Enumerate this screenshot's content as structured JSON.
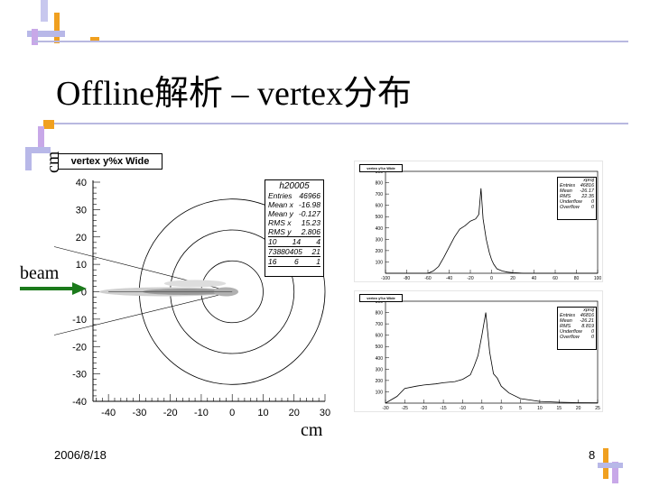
{
  "slide": {
    "title": "Offline解析 – vertex分布",
    "ylabel_unit": "cm",
    "xlabel_unit": "cm",
    "beam_label": "beam",
    "date": "2006/8/18",
    "page": "8"
  },
  "colors": {
    "beam_arrow": "#1b7a1b",
    "decor_purple": "#b8b8e8",
    "decor_orange": "#f0a020"
  },
  "chart_data": [
    {
      "type": "scatter",
      "title": "vertex y%x Wide",
      "ylim": [
        -40,
        40
      ],
      "xlim": [
        -45,
        30
      ],
      "xticks": [
        "-40",
        "-30",
        "-20",
        "-10",
        "0",
        "10",
        "20",
        "30"
      ],
      "yticks": [
        "40",
        "30",
        "20",
        "10",
        "0",
        "-10",
        "-20",
        "-30",
        "-40"
      ],
      "stats": {
        "name": "h20005",
        "rows": [
          {
            "k": "Entries",
            "v": "46966"
          },
          {
            "k": "Mean x",
            "v": "-16.98"
          },
          {
            "k": "Mean y",
            "v": "-0.127"
          },
          {
            "k": "RMS x",
            "v": "15.23"
          },
          {
            "k": "RMS y",
            "v": "2.806"
          }
        ],
        "grid": [
          [
            "10",
            "14",
            "4"
          ],
          [
            "73880405",
            "",
            "21"
          ],
          [
            "16",
            "6",
            "1"
          ]
        ]
      },
      "circles_radius": [
        10,
        20,
        30
      ]
    },
    {
      "type": "line",
      "title": "vertex y%x Wide",
      "stats": {
        "name": "xproj",
        "rows": [
          {
            "k": "Entries",
            "v": "46816"
          },
          {
            "k": "Mean",
            "v": "-26.17"
          },
          {
            "k": "RMS",
            "v": "22.35"
          },
          {
            "k": "Underflow",
            "v": "0"
          },
          {
            "k": "Overflow",
            "v": "0"
          }
        ]
      },
      "xlim": [
        -100,
        100
      ],
      "ylim": [
        0,
        900
      ],
      "xticks": [
        "-100",
        "-80",
        "-60",
        "-40",
        "-20",
        "0",
        "20",
        "40",
        "60",
        "80",
        "100"
      ],
      "yticks": [
        "900",
        "800",
        "700",
        "600",
        "500",
        "400",
        "300",
        "200",
        "100"
      ],
      "x": [
        -100,
        -95,
        -90,
        -85,
        -80,
        -75,
        -70,
        -65,
        -60,
        -55,
        -50,
        -45,
        -40,
        -35,
        -30,
        -25,
        -20,
        -15,
        -12,
        -10,
        -8,
        -5,
        -2,
        0,
        2,
        5,
        10,
        15,
        20,
        25,
        30,
        40,
        50,
        60,
        70,
        80,
        90,
        100
      ],
      "y": [
        0,
        0,
        0,
        0,
        0,
        0,
        0,
        0,
        0,
        20,
        60,
        140,
        230,
        320,
        390,
        420,
        460,
        480,
        520,
        750,
        480,
        300,
        180,
        120,
        80,
        40,
        20,
        10,
        5,
        2,
        0,
        0,
        0,
        0,
        0,
        0,
        0,
        0
      ]
    },
    {
      "type": "line",
      "title": "vertex y%x Wide",
      "stats": {
        "name": "xproj",
        "rows": [
          {
            "k": "Entries",
            "v": "46816"
          },
          {
            "k": "Mean",
            "v": "-26.21"
          },
          {
            "k": "RMS",
            "v": "8.819"
          },
          {
            "k": "Underflow",
            "v": "0"
          },
          {
            "k": "Overflow",
            "v": "0"
          }
        ]
      },
      "xlim": [
        -30,
        25
      ],
      "ylim": [
        0,
        900
      ],
      "xticks": [
        "-30",
        "-25",
        "-20",
        "-15",
        "-10",
        "-5",
        "0",
        "5",
        "10",
        "15",
        "20",
        "25"
      ],
      "yticks": [
        "900",
        "800",
        "700",
        "600",
        "500",
        "400",
        "300",
        "200",
        "100"
      ],
      "x": [
        -30,
        -27,
        -25,
        -22,
        -20,
        -17,
        -15,
        -12,
        -10,
        -8,
        -7,
        -6,
        -5,
        -4,
        -3,
        -2,
        -1,
        0,
        2,
        5,
        8,
        10,
        15,
        20,
        25
      ],
      "y": [
        0,
        60,
        130,
        150,
        160,
        170,
        180,
        190,
        210,
        250,
        330,
        420,
        600,
        800,
        450,
        260,
        220,
        150,
        90,
        40,
        25,
        15,
        8,
        4,
        2
      ]
    }
  ]
}
